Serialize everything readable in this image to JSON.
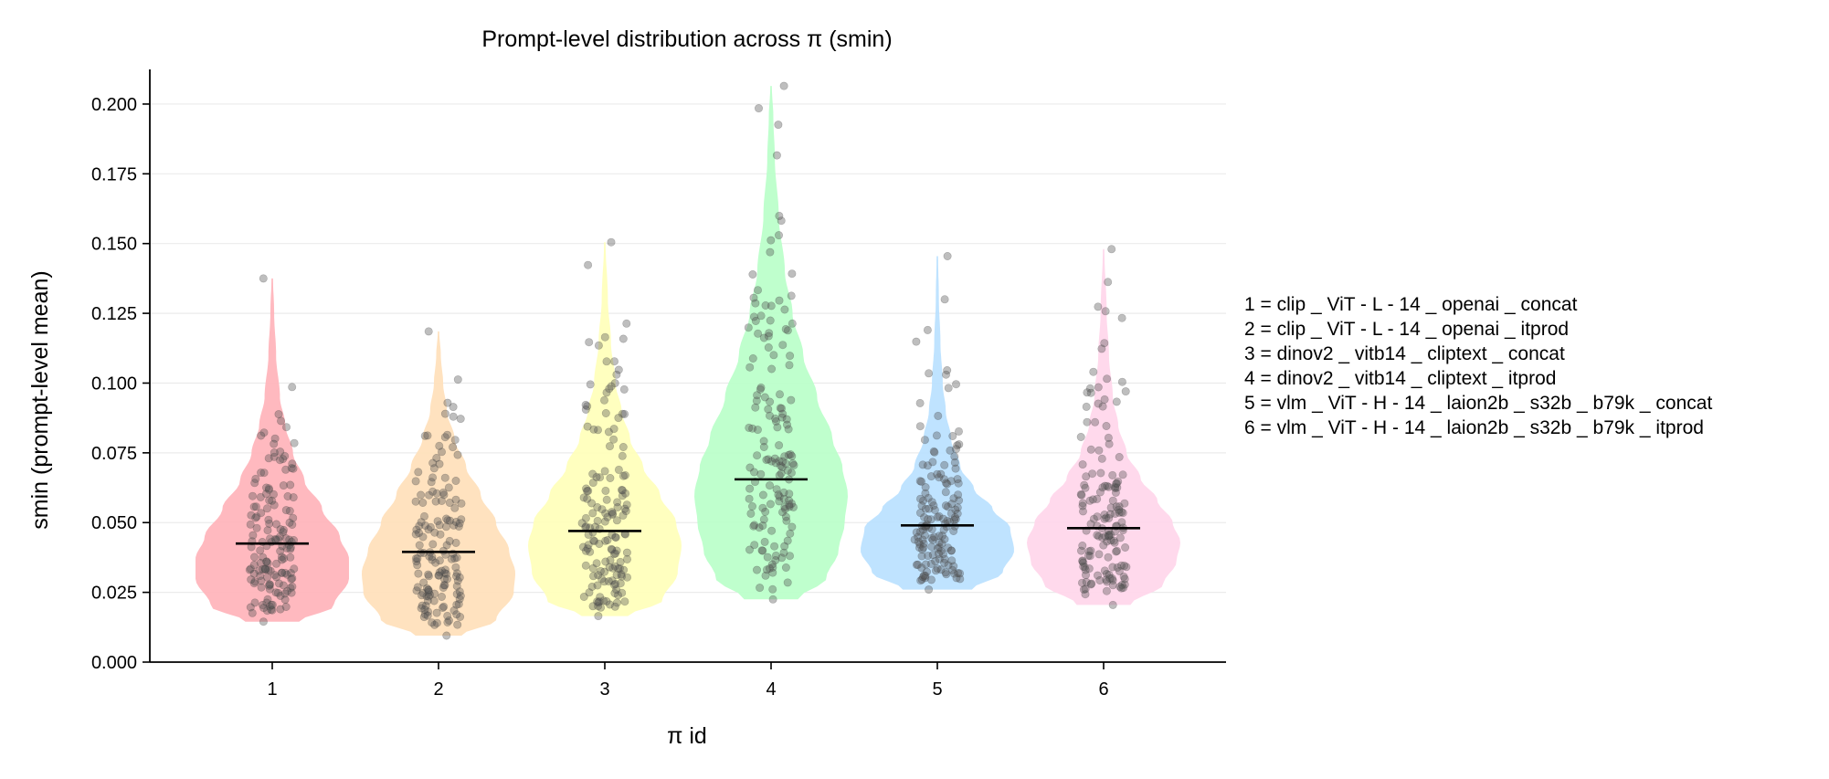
{
  "chart_data": {
    "type": "violin",
    "title": "Prompt-level distribution across π (smin)",
    "xlabel": "π id",
    "ylabel": "smin (prompt-level mean)",
    "ylim": [
      0,
      0.217
    ],
    "yticks": [
      0.0,
      0.025,
      0.05,
      0.075,
      0.1,
      0.125,
      0.15,
      0.175,
      0.2
    ],
    "ytick_labels": [
      "0.000",
      "0.025",
      "0.050",
      "0.075",
      "0.100",
      "0.125",
      "0.150",
      "0.175",
      "0.200"
    ],
    "categories": [
      "1",
      "2",
      "3",
      "4",
      "5",
      "6"
    ],
    "grid": "horizontal",
    "legend_position": "right",
    "legend": [
      "1 = clip _ ViT - L - 14 _ openai _ concat",
      "2 = clip _ ViT - L - 14 _ openai _ itprod",
      "3 = dinov2 _ vitb14 _ cliptext _ concat",
      "4 = dinov2 _ vitb14 _ cliptext _ itprod",
      "5 = vlm _ ViT - H - 14 _ laion2b _ s32b _ b79k _ concat",
      "6 = vlm _ ViT - H - 14 _ laion2b _ s32b _ b79k _ itprod"
    ],
    "series": [
      {
        "name": "1",
        "color": "#ffb3ba",
        "mean": 0.0425,
        "min": 0.0145,
        "max": 0.1375,
        "density": [
          [
            0.0145,
            0.35
          ],
          [
            0.02,
            0.8
          ],
          [
            0.03,
            1.0
          ],
          [
            0.037,
            1.0
          ],
          [
            0.045,
            0.88
          ],
          [
            0.055,
            0.65
          ],
          [
            0.065,
            0.42
          ],
          [
            0.075,
            0.27
          ],
          [
            0.085,
            0.17
          ],
          [
            0.095,
            0.1
          ],
          [
            0.11,
            0.05
          ],
          [
            0.125,
            0.025
          ],
          [
            0.1375,
            0.01
          ]
        ]
      },
      {
        "name": "2",
        "color": "#ffdfba",
        "mean": 0.0395,
        "min": 0.0095,
        "max": 0.1185,
        "density": [
          [
            0.0095,
            0.3
          ],
          [
            0.015,
            0.75
          ],
          [
            0.025,
            0.98
          ],
          [
            0.032,
            1.0
          ],
          [
            0.04,
            0.92
          ],
          [
            0.05,
            0.75
          ],
          [
            0.06,
            0.55
          ],
          [
            0.07,
            0.36
          ],
          [
            0.08,
            0.21
          ],
          [
            0.09,
            0.11
          ],
          [
            0.1,
            0.06
          ],
          [
            0.11,
            0.03
          ],
          [
            0.1185,
            0.01
          ]
        ]
      },
      {
        "name": "3",
        "color": "#ffffba",
        "mean": 0.047,
        "min": 0.0165,
        "max": 0.1505,
        "density": [
          [
            0.0165,
            0.3
          ],
          [
            0.022,
            0.75
          ],
          [
            0.032,
            0.95
          ],
          [
            0.042,
            1.0
          ],
          [
            0.05,
            0.93
          ],
          [
            0.06,
            0.72
          ],
          [
            0.07,
            0.5
          ],
          [
            0.08,
            0.33
          ],
          [
            0.09,
            0.22
          ],
          [
            0.1,
            0.14
          ],
          [
            0.115,
            0.08
          ],
          [
            0.13,
            0.04
          ],
          [
            0.1505,
            0.01
          ]
        ]
      },
      {
        "name": "4",
        "color": "#baffc9",
        "mean": 0.0655,
        "min": 0.0225,
        "max": 0.2065,
        "density": [
          [
            0.0225,
            0.35
          ],
          [
            0.03,
            0.72
          ],
          [
            0.04,
            0.88
          ],
          [
            0.05,
            0.96
          ],
          [
            0.06,
            1.0
          ],
          [
            0.07,
            0.93
          ],
          [
            0.08,
            0.8
          ],
          [
            0.095,
            0.6
          ],
          [
            0.11,
            0.42
          ],
          [
            0.125,
            0.28
          ],
          [
            0.14,
            0.18
          ],
          [
            0.16,
            0.1
          ],
          [
            0.18,
            0.05
          ],
          [
            0.195,
            0.03
          ],
          [
            0.2065,
            0.01
          ]
        ]
      },
      {
        "name": "5",
        "color": "#bae1ff",
        "mean": 0.049,
        "min": 0.026,
        "max": 0.1455,
        "density": [
          [
            0.026,
            0.45
          ],
          [
            0.032,
            0.85
          ],
          [
            0.04,
            1.0
          ],
          [
            0.048,
            0.95
          ],
          [
            0.055,
            0.72
          ],
          [
            0.062,
            0.48
          ],
          [
            0.07,
            0.3
          ],
          [
            0.08,
            0.18
          ],
          [
            0.09,
            0.11
          ],
          [
            0.1,
            0.07
          ],
          [
            0.115,
            0.04
          ],
          [
            0.13,
            0.02
          ],
          [
            0.1455,
            0.01
          ]
        ]
      },
      {
        "name": "6",
        "color": "#ffd6ea",
        "mean": 0.048,
        "min": 0.0205,
        "max": 0.148,
        "density": [
          [
            0.0205,
            0.35
          ],
          [
            0.028,
            0.78
          ],
          [
            0.036,
            0.95
          ],
          [
            0.043,
            1.0
          ],
          [
            0.05,
            0.9
          ],
          [
            0.058,
            0.7
          ],
          [
            0.066,
            0.48
          ],
          [
            0.075,
            0.3
          ],
          [
            0.085,
            0.19
          ],
          [
            0.095,
            0.12
          ],
          [
            0.11,
            0.07
          ],
          [
            0.125,
            0.04
          ],
          [
            0.148,
            0.01
          ]
        ]
      }
    ]
  }
}
